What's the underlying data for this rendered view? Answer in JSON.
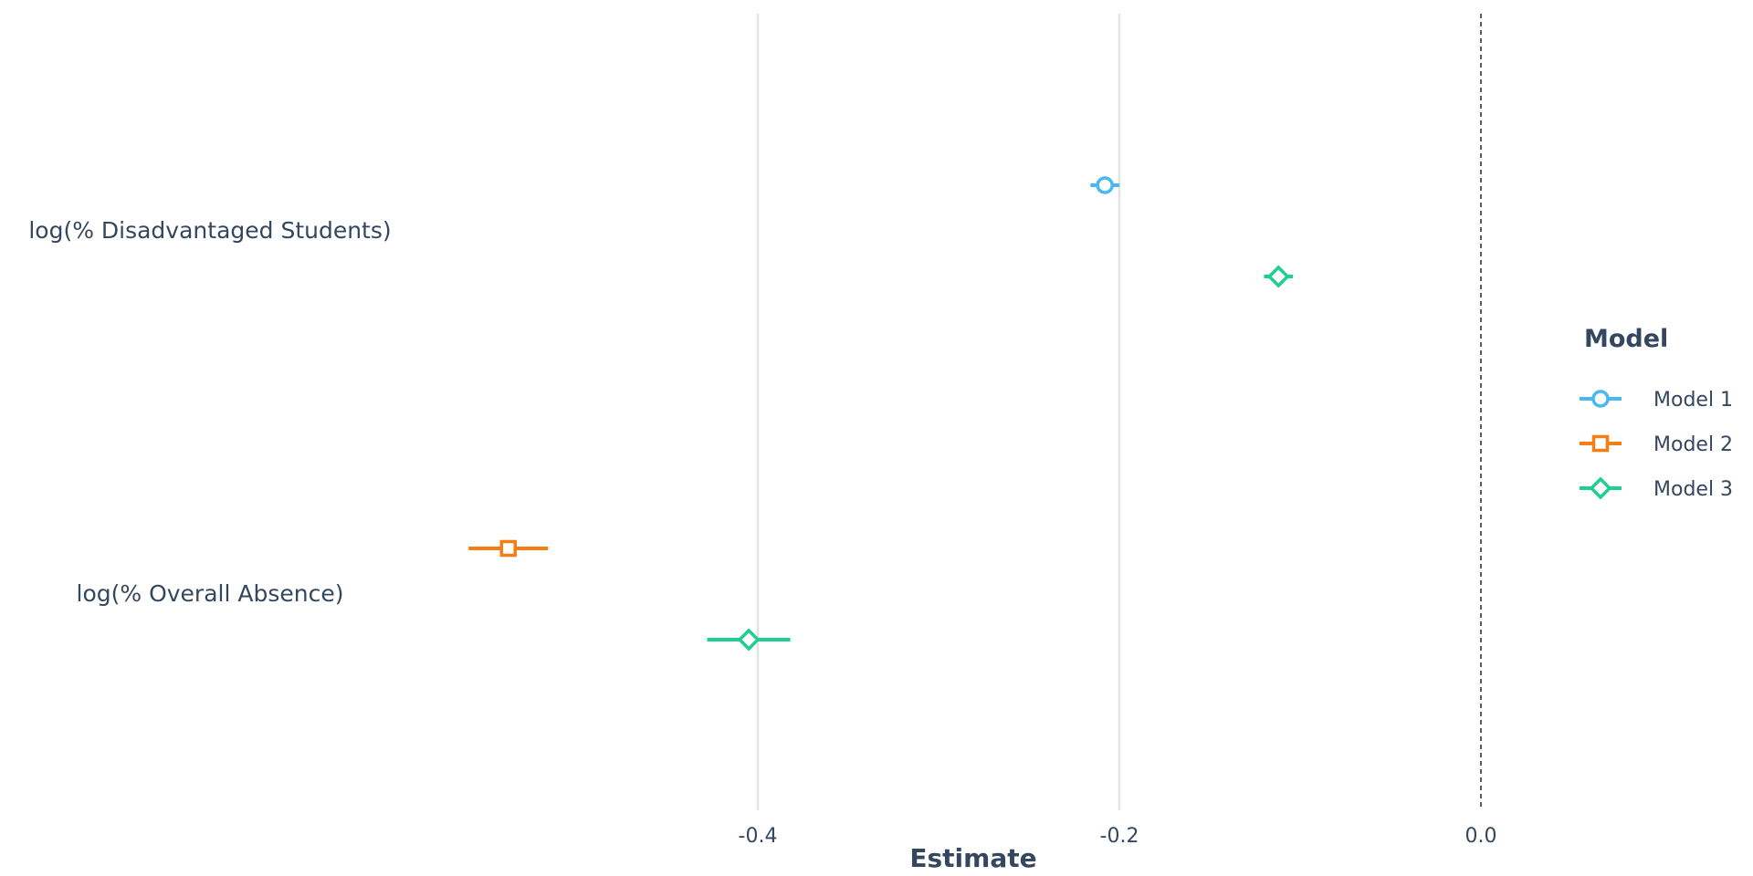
{
  "chart_data": {
    "type": "scatter",
    "subtype": "coefficient-plot",
    "xlabel": "Estimate",
    "ylabel": "",
    "xlim": [
      -0.6,
      0.12
    ],
    "x_ticks": [
      {
        "value": -0.4,
        "label": "-0.4"
      },
      {
        "value": -0.2,
        "label": "-0.2"
      },
      {
        "value": 0.0,
        "label": "0.0"
      }
    ],
    "categories": [
      "log(% Disadvantaged Students)",
      "log(% Overall Absence)"
    ],
    "reference_line": {
      "x": 0.0,
      "style": "dashed"
    },
    "grid": "vertical",
    "legend": {
      "title": "Model",
      "position": "right"
    },
    "series": [
      {
        "name": "Model 1",
        "color": "#4ab8f0",
        "marker": "circle",
        "points": [
          {
            "category": "log(% Disadvantaged Students)",
            "estimate": -0.208,
            "low": -0.216,
            "high": -0.2
          }
        ]
      },
      {
        "name": "Model 2",
        "color": "#f57e14",
        "marker": "square",
        "points": [
          {
            "category": "log(% Overall Absence)",
            "estimate": -0.538,
            "low": -0.56,
            "high": -0.516
          }
        ]
      },
      {
        "name": "Model 3",
        "color": "#1fcf90",
        "marker": "diamond",
        "points": [
          {
            "category": "log(% Disadvantaged Students)",
            "estimate": -0.112,
            "low": -0.12,
            "high": -0.104
          },
          {
            "category": "log(% Overall Absence)",
            "estimate": -0.405,
            "low": -0.428,
            "high": -0.382
          }
        ]
      }
    ]
  }
}
